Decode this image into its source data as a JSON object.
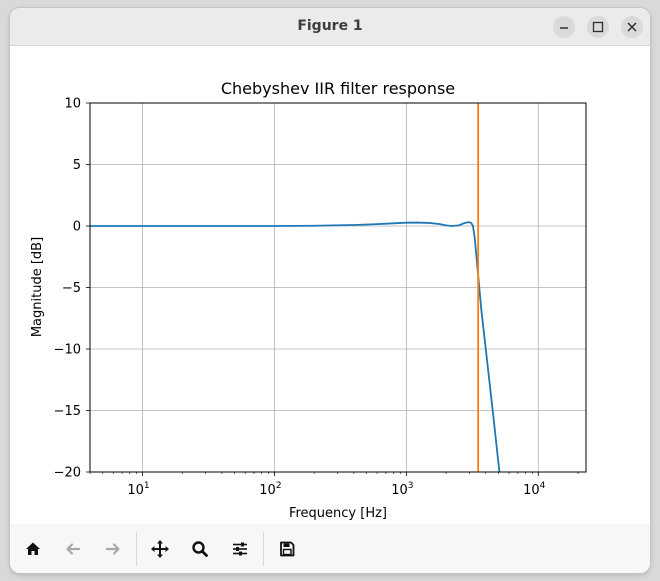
{
  "window": {
    "title": "Figure 1"
  },
  "toolbar": {
    "home": "home-icon",
    "back": "back-arrow-icon",
    "forward": "forward-arrow-icon",
    "pan": "move-icon",
    "zoom": "zoom-icon",
    "configure": "sliders-icon",
    "save": "save-icon"
  },
  "chart_data": {
    "type": "line",
    "title": "Chebyshev IIR filter response",
    "xlabel": "Frequency [Hz]",
    "ylabel": "Magnitude [dB]",
    "xscale": "log",
    "xlim": [
      4,
      23000
    ],
    "ylim": [
      -20,
      10
    ],
    "grid": true,
    "x_ticks": [
      {
        "base": "10",
        "exp": "1",
        "value": 10
      },
      {
        "base": "10",
        "exp": "2",
        "value": 100
      },
      {
        "base": "10",
        "exp": "3",
        "value": 1000
      },
      {
        "base": "10",
        "exp": "4",
        "value": 10000
      }
    ],
    "y_ticks": [
      "10",
      "5",
      "0",
      "−5",
      "−10",
      "−15",
      "−20"
    ],
    "series": [
      {
        "color": "#1f77b4",
        "x": [
          4,
          10,
          30,
          100,
          200,
          400,
          600,
          800,
          1000,
          1200,
          1500,
          1800,
          2000,
          2200,
          2500,
          2700,
          2900,
          3000,
          3100,
          3200,
          3300,
          3400,
          3500,
          3700,
          4000,
          4300,
          4600,
          4900,
          5100
        ],
        "y": [
          0,
          0,
          0,
          0,
          0.02,
          0.08,
          0.15,
          0.22,
          0.27,
          0.28,
          0.25,
          0.15,
          0.05,
          0.0,
          0.05,
          0.2,
          0.3,
          0.3,
          0.25,
          0.0,
          -1.0,
          -2.5,
          -4.0,
          -6.8,
          -10.0,
          -13.0,
          -15.8,
          -18.5,
          -20.2
        ]
      }
    ],
    "vline": {
      "x": 3500,
      "color": "#ff7f0e"
    }
  }
}
